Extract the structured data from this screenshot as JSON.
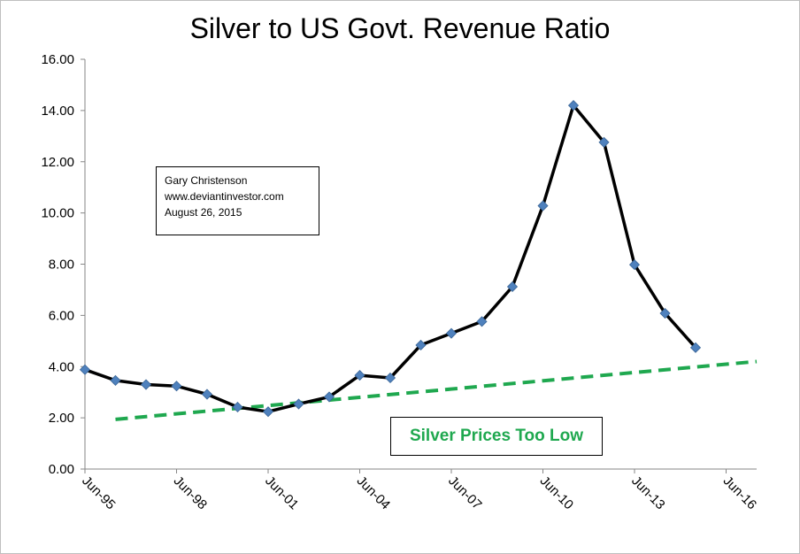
{
  "chart_data": {
    "type": "line",
    "title": "Silver to US Govt. Revenue Ratio",
    "xlabel": "",
    "ylabel": "",
    "x_ticks": [
      "Jun-95",
      "Jun-98",
      "Jun-01",
      "Jun-04",
      "Jun-07",
      "Jun-10",
      "Jun-13",
      "Jun-16"
    ],
    "y_ticks": [
      "0.00",
      "2.00",
      "4.00",
      "6.00",
      "8.00",
      "10.00",
      "12.00",
      "14.00",
      "16.00"
    ],
    "xlim": [
      "1995-06",
      "2017-06"
    ],
    "ylim": [
      0,
      16
    ],
    "grid": false,
    "legend": "none",
    "series": [
      {
        "color": "#000000",
        "marker": "diamond",
        "marker_color": "#4f81bd",
        "points": [
          {
            "x": "1995-06",
            "y": 3.88
          },
          {
            "x": "1996-06",
            "y": 3.46
          },
          {
            "x": "1997-06",
            "y": 3.3
          },
          {
            "x": "1998-06",
            "y": 3.24
          },
          {
            "x": "1999-06",
            "y": 2.92
          },
          {
            "x": "2000-06",
            "y": 2.42
          },
          {
            "x": "2001-06",
            "y": 2.24
          },
          {
            "x": "2002-06",
            "y": 2.54
          },
          {
            "x": "2003-06",
            "y": 2.82
          },
          {
            "x": "2004-06",
            "y": 3.66
          },
          {
            "x": "2005-06",
            "y": 3.56
          },
          {
            "x": "2006-06",
            "y": 4.84
          },
          {
            "x": "2007-06",
            "y": 5.3
          },
          {
            "x": "2008-06",
            "y": 5.76
          },
          {
            "x": "2009-06",
            "y": 7.12
          },
          {
            "x": "2010-06",
            "y": 10.28
          },
          {
            "x": "2011-06",
            "y": 14.2
          },
          {
            "x": "2012-06",
            "y": 12.76
          },
          {
            "x": "2013-06",
            "y": 7.98
          },
          {
            "x": "2014-06",
            "y": 6.08
          },
          {
            "x": "2015-06",
            "y": 4.74
          }
        ]
      },
      {
        "type": "trendline",
        "style": "dashed",
        "color": "#1fa84f",
        "points": [
          {
            "x": "1996-06",
            "y": 1.94
          },
          {
            "x": "2017-06",
            "y": 4.2
          }
        ]
      }
    ],
    "annotations": {
      "info_box": [
        "Gary Christenson",
        "www.deviantinvestor.com",
        "August 26, 2015"
      ],
      "callout": {
        "text": "Silver Prices Too Low",
        "color": "#1fa84f"
      }
    }
  }
}
